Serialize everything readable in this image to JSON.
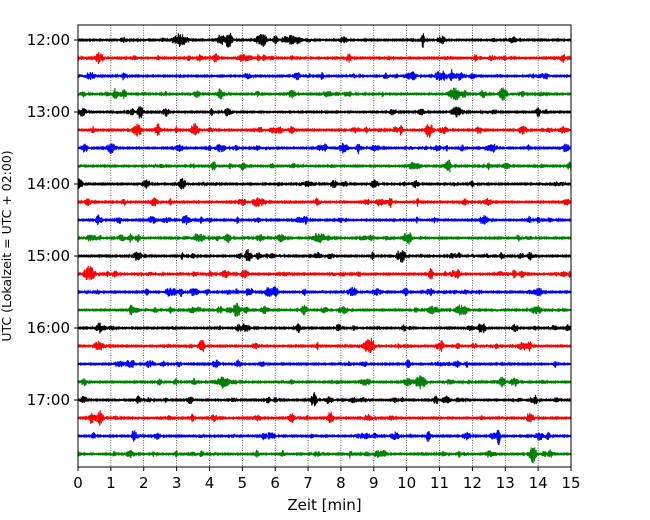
{
  "chart_data": {
    "type": "line",
    "title": "",
    "xlabel": "Zeit  [min]",
    "ylabel": "UTC (Lokalzeit = UTC + 02:00)",
    "xlim": [
      0,
      15
    ],
    "x_ticks": [
      "0",
      "1",
      "2",
      "3",
      "4",
      "5",
      "6",
      "7",
      "8",
      "9",
      "10",
      "11",
      "12",
      "13",
      "14",
      "15"
    ],
    "y_ticks": [
      "12:00",
      "13:00",
      "14:00",
      "15:00",
      "16:00",
      "17:00"
    ],
    "vertical_grid": true,
    "row_interval_minutes": 15,
    "color_cycle": [
      "#000000",
      "#ff0000",
      "#0000ff",
      "#008000"
    ],
    "series": [
      {
        "start": "12:00",
        "color": "#000000"
      },
      {
        "start": "12:15",
        "color": "#ff0000"
      },
      {
        "start": "12:30",
        "color": "#0000ff"
      },
      {
        "start": "12:45",
        "color": "#008000"
      },
      {
        "start": "13:00",
        "color": "#000000"
      },
      {
        "start": "13:15",
        "color": "#ff0000"
      },
      {
        "start": "13:30",
        "color": "#0000ff"
      },
      {
        "start": "13:45",
        "color": "#008000"
      },
      {
        "start": "14:00",
        "color": "#000000"
      },
      {
        "start": "14:15",
        "color": "#ff0000"
      },
      {
        "start": "14:30",
        "color": "#0000ff"
      },
      {
        "start": "14:45",
        "color": "#008000"
      },
      {
        "start": "15:00",
        "color": "#000000"
      },
      {
        "start": "15:15",
        "color": "#ff0000"
      },
      {
        "start": "15:30",
        "color": "#0000ff"
      },
      {
        "start": "15:45",
        "color": "#008000"
      },
      {
        "start": "16:00",
        "color": "#000000"
      },
      {
        "start": "16:15",
        "color": "#ff0000"
      },
      {
        "start": "16:30",
        "color": "#0000ff"
      },
      {
        "start": "16:45",
        "color": "#008000"
      },
      {
        "start": "17:00",
        "color": "#000000"
      },
      {
        "start": "17:15",
        "color": "#ff0000"
      },
      {
        "start": "17:30",
        "color": "#0000ff",
        "event_minute": 12.8
      },
      {
        "start": "17:45",
        "color": "#008000"
      }
    ]
  }
}
